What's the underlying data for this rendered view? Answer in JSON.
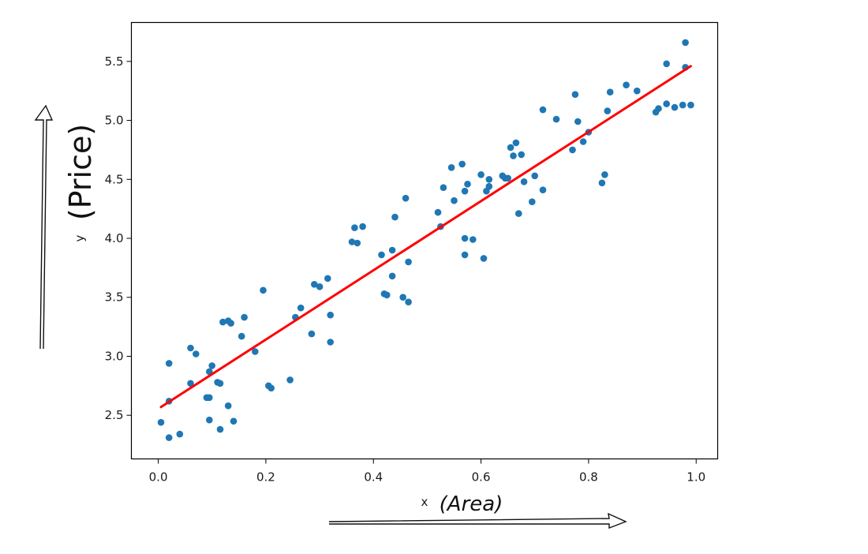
{
  "chart_data": {
    "type": "scatter",
    "xlabel": "x",
    "ylabel": "y",
    "xlim": [
      -0.05,
      1.04
    ],
    "ylim": [
      2.13,
      5.83
    ],
    "xticks": [
      "0.0",
      "0.2",
      "0.4",
      "0.6",
      "0.8",
      "1.0"
    ],
    "yticks": [
      "2.5",
      "3.0",
      "3.5",
      "4.0",
      "4.5",
      "5.0",
      "5.5"
    ],
    "grid": false,
    "annotations": {
      "x_handwritten": "(Area)",
      "y_handwritten": "(Price)"
    },
    "colors": {
      "points": "#1f77b4",
      "fit_line": "#ff0000"
    },
    "fit_line": {
      "x": [
        0.005,
        0.99
      ],
      "y": [
        2.57,
        5.46
      ]
    },
    "points": [
      [
        0.005,
        2.44
      ],
      [
        0.02,
        2.62
      ],
      [
        0.02,
        2.31
      ],
      [
        0.02,
        2.94
      ],
      [
        0.04,
        2.34
      ],
      [
        0.06,
        3.07
      ],
      [
        0.06,
        2.77
      ],
      [
        0.07,
        3.02
      ],
      [
        0.09,
        2.65
      ],
      [
        0.095,
        2.65
      ],
      [
        0.095,
        2.46
      ],
      [
        0.095,
        2.87
      ],
      [
        0.1,
        2.92
      ],
      [
        0.11,
        2.78
      ],
      [
        0.115,
        2.77
      ],
      [
        0.115,
        2.38
      ],
      [
        0.12,
        3.29
      ],
      [
        0.13,
        3.3
      ],
      [
        0.13,
        2.58
      ],
      [
        0.135,
        3.28
      ],
      [
        0.14,
        2.45
      ],
      [
        0.155,
        3.17
      ],
      [
        0.16,
        3.33
      ],
      [
        0.18,
        3.04
      ],
      [
        0.195,
        3.56
      ],
      [
        0.205,
        2.75
      ],
      [
        0.21,
        2.73
      ],
      [
        0.245,
        2.8
      ],
      [
        0.255,
        3.33
      ],
      [
        0.265,
        3.41
      ],
      [
        0.285,
        3.19
      ],
      [
        0.29,
        3.61
      ],
      [
        0.3,
        3.59
      ],
      [
        0.315,
        3.66
      ],
      [
        0.32,
        3.35
      ],
      [
        0.32,
        3.12
      ],
      [
        0.36,
        3.97
      ],
      [
        0.365,
        4.09
      ],
      [
        0.37,
        3.96
      ],
      [
        0.38,
        4.1
      ],
      [
        0.415,
        3.86
      ],
      [
        0.42,
        3.53
      ],
      [
        0.425,
        3.52
      ],
      [
        0.435,
        3.68
      ],
      [
        0.435,
        3.9
      ],
      [
        0.44,
        4.18
      ],
      [
        0.455,
        3.5
      ],
      [
        0.46,
        4.34
      ],
      [
        0.465,
        3.8
      ],
      [
        0.465,
        3.46
      ],
      [
        0.52,
        4.22
      ],
      [
        0.525,
        4.1
      ],
      [
        0.53,
        4.43
      ],
      [
        0.545,
        4.6
      ],
      [
        0.55,
        4.32
      ],
      [
        0.565,
        4.63
      ],
      [
        0.57,
        4.4
      ],
      [
        0.57,
        4.0
      ],
      [
        0.57,
        3.86
      ],
      [
        0.575,
        4.46
      ],
      [
        0.585,
        3.99
      ],
      [
        0.6,
        4.54
      ],
      [
        0.605,
        3.83
      ],
      [
        0.61,
        4.4
      ],
      [
        0.615,
        4.5
      ],
      [
        0.615,
        4.44
      ],
      [
        0.64,
        4.53
      ],
      [
        0.645,
        4.51
      ],
      [
        0.65,
        4.51
      ],
      [
        0.655,
        4.77
      ],
      [
        0.66,
        4.7
      ],
      [
        0.665,
        4.81
      ],
      [
        0.67,
        4.21
      ],
      [
        0.675,
        4.71
      ],
      [
        0.68,
        4.48
      ],
      [
        0.695,
        4.31
      ],
      [
        0.7,
        4.53
      ],
      [
        0.715,
        5.09
      ],
      [
        0.715,
        4.41
      ],
      [
        0.74,
        5.01
      ],
      [
        0.77,
        4.75
      ],
      [
        0.775,
        5.22
      ],
      [
        0.78,
        4.99
      ],
      [
        0.79,
        4.82
      ],
      [
        0.8,
        4.9
      ],
      [
        0.825,
        4.47
      ],
      [
        0.83,
        4.54
      ],
      [
        0.835,
        5.08
      ],
      [
        0.84,
        5.24
      ],
      [
        0.87,
        5.3
      ],
      [
        0.89,
        5.25
      ],
      [
        0.925,
        5.07
      ],
      [
        0.93,
        5.1
      ],
      [
        0.945,
        5.48
      ],
      [
        0.945,
        5.14
      ],
      [
        0.96,
        5.11
      ],
      [
        0.975,
        5.13
      ],
      [
        0.98,
        5.66
      ],
      [
        0.98,
        5.45
      ],
      [
        0.99,
        5.13
      ]
    ]
  }
}
